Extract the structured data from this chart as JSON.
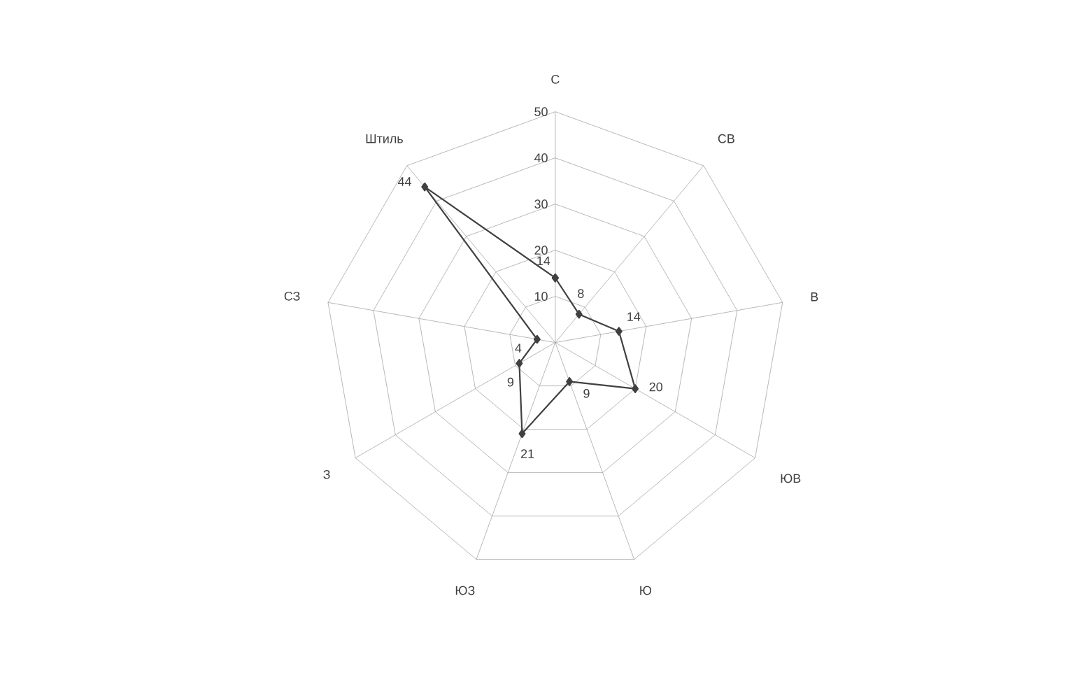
{
  "chart_data": {
    "type": "radar",
    "categories": [
      "С",
      "СВ",
      "В",
      "ЮВ",
      "Ю",
      "ЮЗ",
      "З",
      "СЗ",
      "Штиль"
    ],
    "series": [
      {
        "color": "#404040",
        "values": [
          14,
          8,
          14,
          20,
          9,
          21,
          9,
          4,
          44
        ]
      }
    ],
    "ylim": [
      0,
      50
    ],
    "yticks": [
      10,
      20,
      30,
      40,
      50
    ],
    "grid": true,
    "data_labels": true,
    "marker": "diamond",
    "line_style": "solid"
  }
}
